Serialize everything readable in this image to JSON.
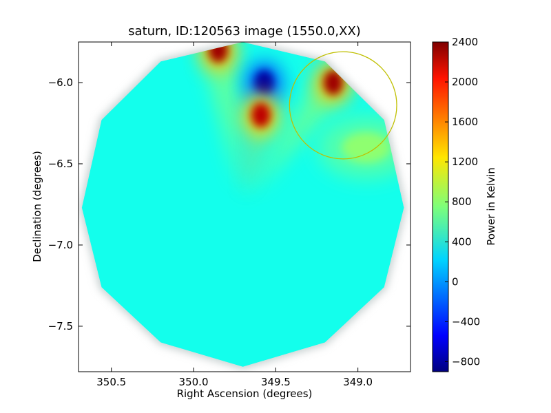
{
  "chart_data": {
    "type": "heatmap",
    "title": "saturn, ID:120563 image (1550.0,XX)",
    "xlabel": "Right Ascension (degrees)",
    "ylabel": "Declination (degrees)",
    "xlim": [
      350.7,
      348.68
    ],
    "ylim": [
      -7.78,
      -5.75
    ],
    "x_ticks": [
      350.5,
      350.0,
      349.5,
      349.0
    ],
    "x_tick_labels": [
      "350.5",
      "350.0",
      "349.5",
      "349.0"
    ],
    "y_ticks": [
      -6.0,
      -6.5,
      -7.0,
      -7.5
    ],
    "y_tick_labels": [
      "−6.0",
      "−6.5",
      "−7.0",
      "−7.5"
    ],
    "colorbar": {
      "label": "Power in Kelvin",
      "min": -900,
      "max": 2400,
      "ticks": [
        2400,
        2000,
        1600,
        1200,
        800,
        400,
        0,
        -400,
        -800
      ],
      "tick_labels": [
        "2400",
        "2000",
        "1600",
        "1200",
        "800",
        "400",
        "0",
        "−400",
        "−800"
      ],
      "colormap": "jet"
    },
    "background_value": 400,
    "field_of_view": {
      "shape": "dodecagon",
      "center": [
        349.7,
        -6.76
      ],
      "vertices": [
        [
          350.68,
          -6.77
        ],
        [
          350.56,
          -6.23
        ],
        [
          350.2,
          -5.87
        ],
        [
          349.7,
          -5.75
        ],
        [
          349.2,
          -5.87
        ],
        [
          348.84,
          -6.23
        ],
        [
          348.72,
          -6.77
        ],
        [
          348.84,
          -7.26
        ],
        [
          349.2,
          -7.6
        ],
        [
          349.7,
          -7.75
        ],
        [
          350.2,
          -7.6
        ],
        [
          350.56,
          -7.26
        ]
      ]
    },
    "features": [
      {
        "name": "hot spot",
        "ra": 349.85,
        "dec": -5.8,
        "value": 2300
      },
      {
        "name": "cold spot",
        "ra": 349.57,
        "dec": -6.0,
        "value": -800
      },
      {
        "name": "hot spot",
        "ra": 349.59,
        "dec": -6.2,
        "value": 2200
      },
      {
        "name": "hot spot",
        "ra": 349.15,
        "dec": -6.0,
        "value": 2300
      },
      {
        "name": "warm region",
        "ra": 348.95,
        "dec": -6.4,
        "value": 800
      }
    ],
    "circle": {
      "ra": 349.09,
      "dec": -6.14,
      "radius_deg": 0.33,
      "color": "#bfbf00"
    }
  }
}
